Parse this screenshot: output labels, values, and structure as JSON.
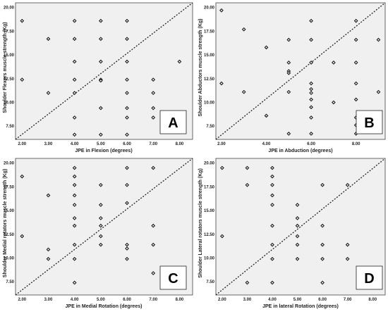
{
  "chart_data": [
    {
      "type": "scatter",
      "panel": "A",
      "xlabel": "JPE in Flexion (degrees)",
      "ylabel": "Shoulder Flexors muscle strength (Kg)",
      "xlim": [
        1.75,
        8.5
      ],
      "ylim": [
        6.1,
        20.5
      ],
      "xticks": [
        2,
        3,
        4,
        5,
        6,
        7,
        8
      ],
      "xtick_labels": [
        "2.00",
        "3.00",
        "4.00",
        "5.00",
        "6.00",
        "7.00",
        "8.00"
      ],
      "yticks": [
        7.5,
        10,
        12.5,
        15,
        17.5,
        20
      ],
      "ytick_labels": [
        "7.50",
        "10.00",
        "12.50",
        "15.00",
        "17.50",
        "20.00"
      ],
      "diagonal": true,
      "points": [
        [
          2,
          18.6
        ],
        [
          2,
          12.4
        ],
        [
          3,
          16.7
        ],
        [
          3,
          11.0
        ],
        [
          4,
          18.6
        ],
        [
          4,
          16.7
        ],
        [
          4,
          14.3
        ],
        [
          4,
          12.4
        ],
        [
          4,
          11.0
        ],
        [
          4,
          8.4
        ],
        [
          4,
          6.6
        ],
        [
          5,
          18.6
        ],
        [
          5,
          16.7
        ],
        [
          5,
          14.3
        ],
        [
          5,
          12.4
        ],
        [
          5,
          12.3
        ],
        [
          5,
          9.4
        ],
        [
          5,
          6.6
        ],
        [
          6,
          18.6
        ],
        [
          6,
          16.7
        ],
        [
          6,
          14.3
        ],
        [
          6,
          12.4
        ],
        [
          6,
          11.0
        ],
        [
          6,
          9.4
        ],
        [
          6,
          8.4
        ],
        [
          6,
          6.6
        ],
        [
          7,
          12.4
        ],
        [
          7,
          11.0
        ],
        [
          7,
          9.4
        ],
        [
          7,
          8.4
        ],
        [
          8,
          14.3
        ]
      ]
    },
    {
      "type": "scatter",
      "panel": "B",
      "xlabel": "JPE in Abduction (degrees)",
      "ylabel": "Shoulder Abductors muscle strength (Kg)",
      "xlim": [
        1.75,
        9.3
      ],
      "ylim": [
        6.1,
        20.5
      ],
      "xticks": [
        2,
        4,
        6,
        8
      ],
      "xtick_labels": [
        "2.00",
        "4.00",
        "6.00",
        "8.00"
      ],
      "yticks": [
        7.5,
        10,
        12.5,
        15,
        17.5,
        20
      ],
      "ytick_labels": [
        "7.50",
        "10.00",
        "12.50",
        "15.00",
        "17.50",
        "20.00"
      ],
      "diagonal": true,
      "points": [
        [
          2,
          19.7
        ],
        [
          2,
          12.0
        ],
        [
          3,
          17.7
        ],
        [
          3,
          11.1
        ],
        [
          4,
          15.8
        ],
        [
          4,
          8.6
        ],
        [
          5,
          16.6
        ],
        [
          5,
          14.2
        ],
        [
          5,
          13.3
        ],
        [
          5,
          13.1
        ],
        [
          5,
          11.1
        ],
        [
          5,
          6.7
        ],
        [
          6,
          18.6
        ],
        [
          6,
          16.6
        ],
        [
          6,
          14.2
        ],
        [
          6,
          12.0
        ],
        [
          6,
          11.4
        ],
        [
          6,
          11.0
        ],
        [
          6,
          10.3
        ],
        [
          6,
          9.5
        ],
        [
          6,
          8.4
        ],
        [
          6,
          6.7
        ],
        [
          7,
          14.2
        ],
        [
          7,
          10.0
        ],
        [
          8,
          18.6
        ],
        [
          8,
          16.6
        ],
        [
          8,
          14.2
        ],
        [
          8,
          12.0
        ],
        [
          8,
          10.3
        ],
        [
          8,
          8.4
        ],
        [
          8,
          7.6
        ],
        [
          8,
          6.7
        ],
        [
          9,
          16.6
        ],
        [
          9,
          11.1
        ]
      ]
    },
    {
      "type": "scatter",
      "panel": "C",
      "xlabel": "JPE in Medial Rotation (degrees)",
      "ylabel": "Shoulder Medial rotators muscle strength (Kg)",
      "xlim": [
        1.75,
        8.5
      ],
      "ylim": [
        6.1,
        20.5
      ],
      "xticks": [
        2,
        3,
        4,
        5,
        6,
        7,
        8
      ],
      "xtick_labels": [
        "2.00",
        "3.00",
        "4.00",
        "5.00",
        "6.00",
        "7.00",
        "8.00"
      ],
      "yticks": [
        7.5,
        10,
        12.5,
        15,
        17.5,
        20
      ],
      "ytick_labels": [
        "7.50",
        "10.00",
        "12.50",
        "15.00",
        "17.50",
        "20.00"
      ],
      "diagonal": true,
      "points": [
        [
          2,
          18.6
        ],
        [
          2,
          12.3
        ],
        [
          3,
          16.6
        ],
        [
          3,
          10.9
        ],
        [
          3,
          9.9
        ],
        [
          4,
          19.5
        ],
        [
          4,
          18.6
        ],
        [
          4,
          17.7
        ],
        [
          4,
          16.6
        ],
        [
          4,
          15.6
        ],
        [
          4,
          14.2
        ],
        [
          4,
          13.4
        ],
        [
          4,
          11.4
        ],
        [
          4,
          9.9
        ],
        [
          4,
          7.4
        ],
        [
          5,
          17.7
        ],
        [
          5,
          15.6
        ],
        [
          5,
          14.2
        ],
        [
          5,
          13.4
        ],
        [
          5,
          12.3
        ],
        [
          5,
          11.4
        ],
        [
          6,
          19.5
        ],
        [
          6,
          17.7
        ],
        [
          6,
          15.8
        ],
        [
          6,
          11.4
        ],
        [
          6,
          11.0
        ],
        [
          6,
          9.9
        ],
        [
          7,
          19.5
        ],
        [
          7,
          13.4
        ],
        [
          7,
          11.4
        ],
        [
          7,
          8.4
        ]
      ]
    },
    {
      "type": "scatter",
      "panel": "D",
      "xlabel": "JPE in lateral Rotation (degrees)",
      "ylabel": "Shoulder Lateral rotators muscle strength (Kg)",
      "xlim": [
        1.75,
        8.5
      ],
      "ylim": [
        6.1,
        20.5
      ],
      "xticks": [
        2,
        3,
        4,
        5,
        6,
        7,
        8
      ],
      "xtick_labels": [
        "2.00",
        "3.00",
        "4.00",
        "5.00",
        "6.00",
        "7.00",
        "8.00"
      ],
      "yticks": [
        7.5,
        10,
        12.5,
        15,
        17.5,
        20
      ],
      "ytick_labels": [
        "7.50",
        "10.00",
        "12.50",
        "15.00",
        "17.50",
        "20.00"
      ],
      "diagonal": true,
      "points": [
        [
          2,
          19.5
        ],
        [
          2,
          12.3
        ],
        [
          3,
          19.5
        ],
        [
          3,
          17.7
        ],
        [
          3,
          7.4
        ],
        [
          4,
          19.5
        ],
        [
          4,
          18.6
        ],
        [
          4,
          17.7
        ],
        [
          4,
          16.6
        ],
        [
          4,
          15.6
        ],
        [
          4,
          13.4
        ],
        [
          4,
          11.4
        ],
        [
          4,
          9.9
        ],
        [
          4,
          7.4
        ],
        [
          5,
          15.6
        ],
        [
          5,
          14.2
        ],
        [
          5,
          13.4
        ],
        [
          5,
          12.3
        ],
        [
          5,
          11.4
        ],
        [
          5,
          9.9
        ],
        [
          6,
          17.7
        ],
        [
          6,
          13.4
        ],
        [
          6,
          11.4
        ],
        [
          6,
          9.9
        ],
        [
          6,
          7.4
        ],
        [
          7,
          17.7
        ],
        [
          7,
          11.4
        ],
        [
          7,
          9.9
        ]
      ]
    }
  ]
}
